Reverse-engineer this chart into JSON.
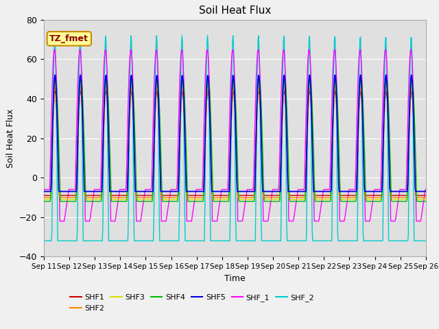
{
  "title": "Soil Heat Flux",
  "xlabel": "Time",
  "ylabel": "Soil Heat Flux",
  "ylim": [
    -40,
    80
  ],
  "yticks": [
    -40,
    -20,
    0,
    20,
    40,
    60,
    80
  ],
  "xtick_labels": [
    "Sep 11",
    "Sep 12",
    "Sep 13",
    "Sep 14",
    "Sep 15",
    "Sep 16",
    "Sep 17",
    "Sep 18",
    "Sep 19",
    "Sep 20",
    "Sep 21",
    "Sep 22",
    "Sep 23",
    "Sep 24",
    "Sep 25",
    "Sep 26"
  ],
  "series_colors": {
    "SHF1": "#cc0000",
    "SHF2": "#ff8800",
    "SHF3": "#dddd00",
    "SHF4": "#00bb00",
    "SHF5": "#0000dd",
    "SHF_1": "#ff00ff",
    "SHF_2": "#00cccc"
  },
  "annotation_text": "TZ_fmet",
  "annotation_box_facecolor": "#ffff99",
  "annotation_box_edgecolor": "#cc8800",
  "annotation_text_color": "#8B0000",
  "fig_facecolor": "#f0f0f0",
  "ax_facecolor": "#e0e0e0",
  "grid_color": "#ffffff"
}
